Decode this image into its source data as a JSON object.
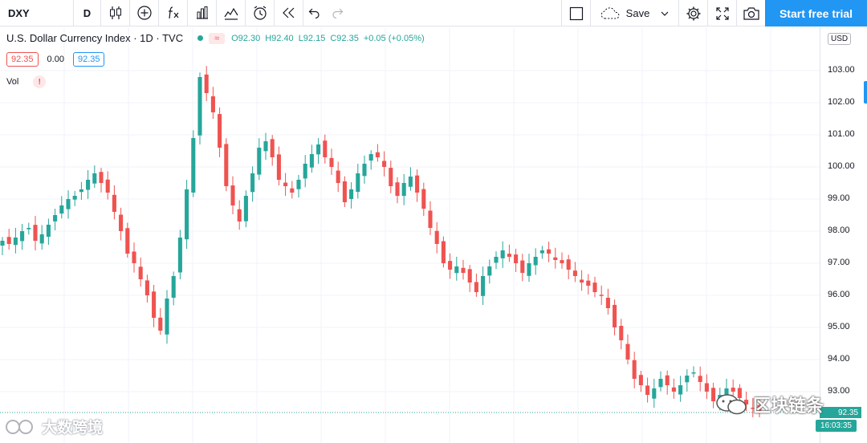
{
  "toolbar": {
    "symbol": "DXY",
    "interval": "D",
    "icons": [
      "candles-icon",
      "add-compare-icon",
      "indicators-fx-icon",
      "financials-icon",
      "templates-icon",
      "alert-icon",
      "replay-icon",
      "undo-icon",
      "redo-icon"
    ],
    "save_label": "Save",
    "trial_label": "Start free trial"
  },
  "legend": {
    "title": "U.S. Dollar Currency Index · 1D · TVC",
    "open": "O92.30",
    "high": "H92.40",
    "low": "L92.15",
    "close": "C92.35",
    "change": "+0.05 (+0.05%)",
    "bid": "92.35",
    "spread": "0.00",
    "ask": "92.35"
  },
  "volume": {
    "label": "Vol",
    "warn": "!"
  },
  "axis": {
    "currency": "USD",
    "ticks": [
      "103.00",
      "102.00",
      "101.00",
      "100.00",
      "99.00",
      "98.00",
      "97.00",
      "96.00",
      "95.00",
      "94.00",
      "93.00"
    ],
    "current_price": "92.35",
    "countdown": "16:03:35"
  },
  "colors": {
    "up": "#26a69a",
    "down": "#ef5350",
    "accent": "#2196f3"
  },
  "watermarks": {
    "left": "大数跨境",
    "right": "区块链条"
  },
  "chart_data": {
    "type": "candlestick",
    "title": "U.S. Dollar Currency Index",
    "ylim": [
      92.35,
      104.2
    ],
    "close_path": [
      97.7,
      97.6,
      97.8,
      98.0,
      98.1,
      97.7,
      97.9,
      98.2,
      98.5,
      98.8,
      99.0,
      99.1,
      99.3,
      99.6,
      99.8,
      99.5,
      99.2,
      98.6,
      98.0,
      97.3,
      97.0,
      96.5,
      96.0,
      95.3,
      94.9,
      95.9,
      96.6,
      97.8,
      99.3,
      100.9,
      102.8,
      102.3,
      101.7,
      100.6,
      99.4,
      98.8,
      98.3,
      99.1,
      99.8,
      100.6,
      100.8,
      100.3,
      99.6,
      99.4,
      99.2,
      99.6,
      100.1,
      100.4,
      100.7,
      100.3,
      100.0,
      99.5,
      98.9,
      99.3,
      99.8,
      100.1,
      100.4,
      100.3,
      100.0,
      99.4,
      99.1,
      99.5,
      99.7,
      99.2,
      98.7,
      98.1,
      97.6,
      97.0,
      96.8,
      96.9,
      96.7,
      96.4,
      96.1,
      96.6,
      96.9,
      97.2,
      97.4,
      97.2,
      97.0,
      96.7,
      97.0,
      97.2,
      97.4,
      97.3,
      97.1,
      97.0,
      96.8,
      96.6,
      96.4,
      96.3,
      96.1,
      96.0,
      95.6,
      95.0,
      94.6,
      94.0,
      93.4,
      93.2,
      92.9,
      93.1,
      93.4,
      93.2,
      93.0,
      93.2,
      93.5,
      93.6,
      93.3,
      93.0,
      92.7,
      92.9,
      93.1,
      93.0,
      92.8,
      92.6,
      92.5,
      92.35
    ]
  }
}
